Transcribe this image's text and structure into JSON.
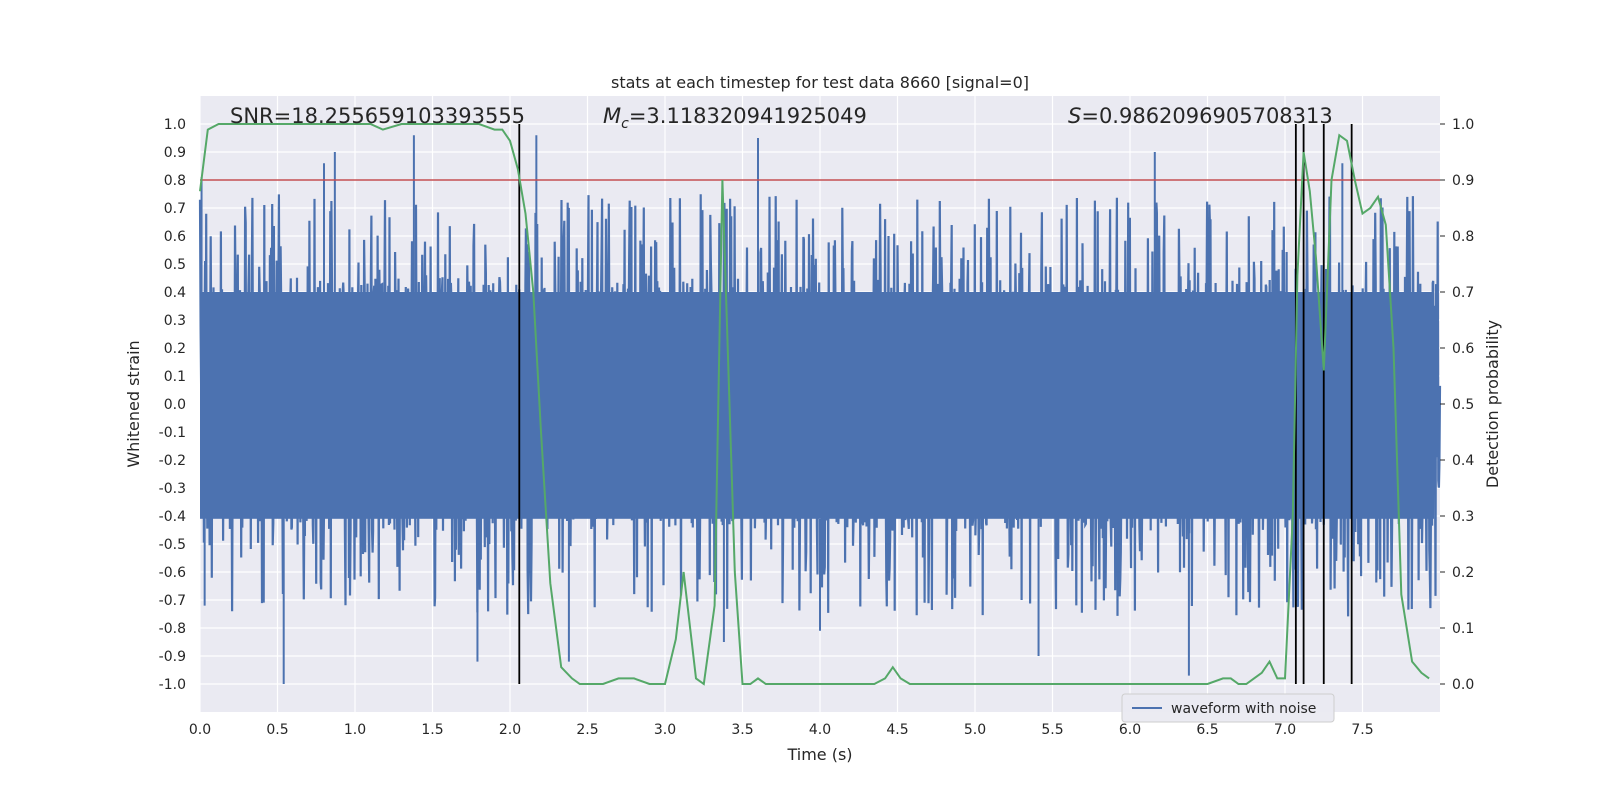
{
  "chart_data": {
    "type": "line",
    "title": "stats at each timestep for test data 8660 [signal=0]",
    "xlabel": "Time (s)",
    "ylabel": "Whitened strain",
    "y2label": "Detection probability",
    "xlim": [
      0.0,
      8.0
    ],
    "ylim": [
      -1.1,
      1.1
    ],
    "y2lim": [
      -0.05,
      1.05
    ],
    "xticks": [
      "0.0",
      "0.5",
      "1.0",
      "1.5",
      "2.0",
      "2.5",
      "3.0",
      "3.5",
      "4.0",
      "4.5",
      "5.0",
      "5.5",
      "6.0",
      "6.5",
      "7.0",
      "7.5"
    ],
    "yticks": [
      "1.0",
      "0.9",
      "0.8",
      "0.7",
      "0.6",
      "0.5",
      "0.4",
      "0.3",
      "0.2",
      "0.1",
      "0.0",
      "-0.1",
      "-0.2",
      "-0.3",
      "-0.4",
      "-0.5",
      "-0.6",
      "-0.7",
      "-0.8",
      "-0.9",
      "-1.0"
    ],
    "y2ticks": [
      "1.0",
      "0.9",
      "0.8",
      "0.7",
      "0.6",
      "0.5",
      "0.4",
      "0.3",
      "0.2",
      "0.1",
      "0.0"
    ],
    "grid": true,
    "legend_position": "lower-right",
    "annotations": {
      "snr": "SNR=18.255659103393555",
      "mc_symbol": "M",
      "mc_sub": "c",
      "mc_value": "=3.118320941925049",
      "s_symbol": "S",
      "s_value": "=0.9862096905708313"
    },
    "threshold": 0.9,
    "threshold_color": "#c44e52",
    "vertical_markers_s": [
      2.06,
      7.07,
      7.12,
      7.25,
      7.43
    ],
    "series": [
      {
        "name": "waveform with noise",
        "axis": "left",
        "color": "#4c72b0",
        "envelope_band": [
          -0.41,
          0.4
        ],
        "peak_extremes": [
          {
            "x": 0.01,
            "y": 0.81
          },
          {
            "x": 0.03,
            "y": -0.72
          },
          {
            "x": 0.54,
            "y": -1.0
          },
          {
            "x": 0.8,
            "y": 0.86
          },
          {
            "x": 0.87,
            "y": 0.9
          },
          {
            "x": 1.38,
            "y": 0.96
          },
          {
            "x": 1.79,
            "y": -0.92
          },
          {
            "x": 2.17,
            "y": 0.96
          },
          {
            "x": 2.38,
            "y": -0.92
          },
          {
            "x": 3.38,
            "y": -0.85
          },
          {
            "x": 3.6,
            "y": 0.95
          },
          {
            "x": 4.0,
            "y": -0.81
          },
          {
            "x": 5.41,
            "y": -0.9
          },
          {
            "x": 6.16,
            "y": 0.9
          },
          {
            "x": 6.38,
            "y": -0.97
          },
          {
            "x": 7.37,
            "y": 0.86
          }
        ]
      },
      {
        "name": "",
        "axis": "right",
        "color": "#55a868",
        "x": [
          0.0,
          0.05,
          0.12,
          0.2,
          0.4,
          0.6,
          0.8,
          1.0,
          1.1,
          1.18,
          1.3,
          1.5,
          1.7,
          1.8,
          1.9,
          1.95,
          2.0,
          2.05,
          2.1,
          2.15,
          2.2,
          2.26,
          2.33,
          2.4,
          2.45,
          2.5,
          2.6,
          2.7,
          2.75,
          2.8,
          2.9,
          3.0,
          3.07,
          3.12,
          3.2,
          3.25,
          3.32,
          3.37,
          3.45,
          3.5,
          3.55,
          3.6,
          3.65,
          3.75,
          3.85,
          4.0,
          4.2,
          4.35,
          4.42,
          4.47,
          4.52,
          4.58,
          4.65,
          4.8,
          5.0,
          5.3,
          5.6,
          5.9,
          6.2,
          6.5,
          6.6,
          6.65,
          6.7,
          6.75,
          6.8,
          6.85,
          6.9,
          6.95,
          7.0,
          7.05,
          7.08,
          7.12,
          7.16,
          7.2,
          7.25,
          7.3,
          7.35,
          7.4,
          7.45,
          7.5,
          7.55,
          7.6,
          7.65,
          7.7,
          7.75,
          7.82,
          7.88,
          7.93
        ],
        "y": [
          0.88,
          0.99,
          1.0,
          1.0,
          1.0,
          1.0,
          1.0,
          1.0,
          1.0,
          0.99,
          1.0,
          1.0,
          1.0,
          1.0,
          0.99,
          0.99,
          0.97,
          0.92,
          0.84,
          0.7,
          0.45,
          0.18,
          0.03,
          0.01,
          0.0,
          0.0,
          0.0,
          0.01,
          0.01,
          0.01,
          0.0,
          0.0,
          0.08,
          0.2,
          0.01,
          0.0,
          0.14,
          0.9,
          0.2,
          0.0,
          0.0,
          0.01,
          0.0,
          0.0,
          0.0,
          0.0,
          0.0,
          0.0,
          0.01,
          0.03,
          0.01,
          0.0,
          0.0,
          0.0,
          0.0,
          0.0,
          0.0,
          0.0,
          0.0,
          0.0,
          0.01,
          0.01,
          0.0,
          0.0,
          0.01,
          0.02,
          0.04,
          0.01,
          0.01,
          0.3,
          0.73,
          0.95,
          0.88,
          0.76,
          0.56,
          0.9,
          0.98,
          0.97,
          0.9,
          0.84,
          0.85,
          0.87,
          0.82,
          0.6,
          0.16,
          0.04,
          0.02,
          0.01
        ]
      }
    ]
  }
}
